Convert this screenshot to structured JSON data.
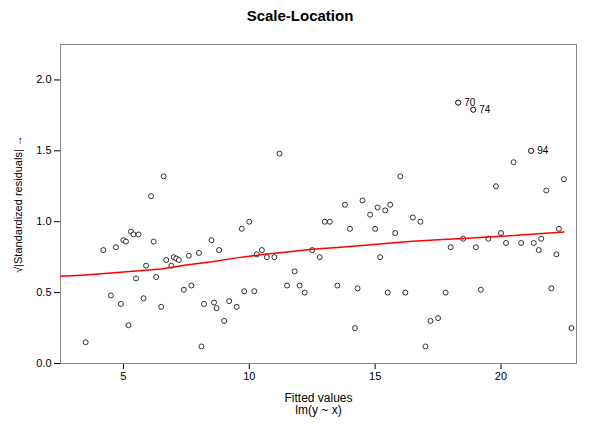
{
  "chart_data": {
    "type": "scatter",
    "title": "Scale-Location",
    "xlabel": "Fitted values\nlm(y ~ x)",
    "ylabel": "√|Standardized residuals|",
    "xlim": [
      2.5,
      23.0
    ],
    "ylim": [
      0.0,
      2.25
    ],
    "xticks": [
      5,
      10,
      15,
      20
    ],
    "yticks": [
      {
        "value": 0.0,
        "label": "0.0"
      },
      0.5,
      {
        "value": 1.0,
        "label": "1.0"
      },
      1.5,
      {
        "value": 2.0,
        "label": "2.0"
      }
    ],
    "grid": false,
    "points": {
      "x": [
        3.5,
        4.2,
        4.5,
        4.7,
        4.9,
        5.0,
        5.1,
        5.2,
        5.3,
        5.4,
        5.5,
        5.6,
        5.8,
        5.9,
        6.1,
        6.2,
        6.3,
        6.5,
        6.6,
        6.7,
        6.9,
        7.0,
        7.1,
        7.2,
        7.4,
        7.6,
        7.7,
        8.0,
        8.1,
        8.2,
        8.5,
        8.6,
        8.7,
        8.8,
        9.0,
        9.2,
        9.5,
        9.7,
        9.8,
        10.0,
        10.2,
        10.3,
        10.5,
        10.7,
        11.0,
        11.2,
        11.5,
        11.8,
        12.0,
        12.2,
        12.5,
        12.8,
        13.0,
        13.2,
        13.5,
        13.8,
        14.0,
        14.2,
        14.3,
        14.5,
        14.8,
        15.0,
        15.1,
        15.2,
        15.4,
        15.5,
        15.6,
        15.8,
        16.0,
        16.2,
        16.5,
        16.8,
        17.0,
        17.2,
        17.5,
        17.8,
        18.0,
        18.3,
        18.5,
        18.9,
        19.0,
        19.2,
        19.5,
        19.8,
        20.0,
        20.2,
        20.5,
        20.8,
        21.2,
        21.3,
        21.5,
        21.6,
        21.8,
        22.0,
        22.2,
        22.3,
        22.5,
        22.8
      ],
      "y": [
        0.15,
        0.8,
        0.48,
        0.82,
        0.42,
        0.87,
        0.86,
        0.27,
        0.93,
        0.91,
        0.6,
        0.91,
        0.46,
        0.69,
        1.18,
        0.86,
        0.61,
        0.4,
        1.32,
        0.73,
        0.69,
        0.75,
        0.74,
        0.73,
        0.52,
        0.76,
        0.55,
        0.78,
        0.12,
        0.42,
        0.87,
        0.43,
        0.39,
        0.8,
        0.3,
        0.44,
        0.4,
        0.95,
        0.51,
        1.0,
        0.51,
        0.77,
        0.8,
        0.75,
        0.75,
        1.48,
        0.55,
        0.65,
        0.55,
        0.5,
        0.8,
        0.75,
        1.0,
        1.0,
        0.55,
        1.12,
        0.95,
        0.25,
        0.53,
        1.15,
        1.05,
        0.95,
        1.1,
        0.75,
        1.08,
        0.5,
        1.12,
        0.92,
        1.32,
        0.5,
        1.03,
        1.0,
        0.12,
        0.3,
        0.32,
        0.5,
        0.82,
        1.84,
        0.88,
        1.79,
        0.82,
        0.52,
        0.88,
        1.25,
        0.92,
        0.85,
        1.42,
        0.85,
        1.5,
        0.85,
        0.8,
        0.88,
        1.22,
        0.53,
        0.77,
        0.95,
        1.3,
        0.25
      ]
    },
    "line": {
      "type": "line",
      "color": "red",
      "x": [
        2.5,
        3.5,
        4.5,
        5.5,
        6.5,
        7.5,
        8.5,
        9.5,
        10.5,
        11.5,
        12.5,
        13.5,
        14.5,
        15.5,
        16.5,
        17.5,
        18.5,
        19.5,
        20.5,
        21.5,
        22.5
      ],
      "y": [
        0.615,
        0.625,
        0.638,
        0.652,
        0.667,
        0.695,
        0.718,
        0.745,
        0.768,
        0.787,
        0.805,
        0.818,
        0.832,
        0.848,
        0.862,
        0.872,
        0.882,
        0.893,
        0.903,
        0.915,
        0.928
      ]
    },
    "annotations": [
      {
        "text": "70",
        "x": 18.3,
        "y": 1.84
      },
      {
        "text": "74",
        "x": 18.9,
        "y": 1.79
      },
      {
        "text": "94",
        "x": 21.2,
        "y": 1.5
      }
    ]
  }
}
